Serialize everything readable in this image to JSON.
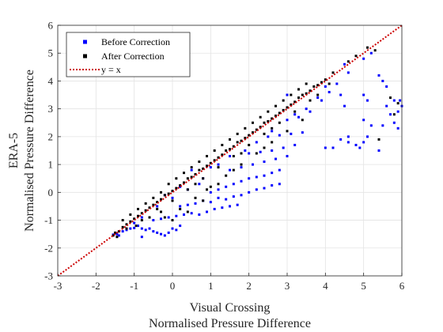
{
  "chart_data": {
    "type": "scatter",
    "title": "",
    "xlabel": [
      "Visual Crossing",
      "Normalised Pressure Difference"
    ],
    "ylabel": [
      "ERA-5",
      "Normalised Pressure Difference"
    ],
    "xlim": [
      -3,
      6
    ],
    "ylim": [
      -3,
      6
    ],
    "xticks": [
      -3,
      -2,
      -1,
      0,
      1,
      2,
      3,
      4,
      5,
      6
    ],
    "yticks": [
      -3,
      -2,
      -1,
      0,
      1,
      2,
      3,
      4,
      5,
      6
    ],
    "grid": true,
    "legend_position": "top-left",
    "series": [
      {
        "name": "Before Correction",
        "color": "#0000ff",
        "marker": "square",
        "points": [
          [
            -1.55,
            -1.52
          ],
          [
            -1.45,
            -1.5
          ],
          [
            -1.4,
            -1.55
          ],
          [
            -1.3,
            -1.4
          ],
          [
            -1.2,
            -1.35
          ],
          [
            -1.1,
            -1.3
          ],
          [
            -1.0,
            -1.28
          ],
          [
            -0.9,
            -1.2
          ],
          [
            -0.8,
            -1.3
          ],
          [
            -0.7,
            -1.35
          ],
          [
            -0.6,
            -1.3
          ],
          [
            -0.5,
            -1.4
          ],
          [
            -0.4,
            -1.45
          ],
          [
            -0.3,
            -1.5
          ],
          [
            -0.2,
            -1.55
          ],
          [
            -0.1,
            -1.45
          ],
          [
            0.0,
            -1.3
          ],
          [
            0.1,
            -1.35
          ],
          [
            0.2,
            -1.2
          ],
          [
            -0.5,
            -1.0
          ],
          [
            -0.3,
            -0.95
          ],
          [
            -0.1,
            -0.9
          ],
          [
            0.1,
            -0.85
          ],
          [
            0.3,
            -0.8
          ],
          [
            0.5,
            -0.75
          ],
          [
            0.7,
            -0.8
          ],
          [
            0.9,
            -0.7
          ],
          [
            1.1,
            -0.6
          ],
          [
            1.3,
            -0.55
          ],
          [
            1.5,
            -0.5
          ],
          [
            1.7,
            -0.45
          ],
          [
            0.2,
            -0.5
          ],
          [
            0.4,
            -0.45
          ],
          [
            0.6,
            -0.4
          ],
          [
            0.8,
            -0.3
          ],
          [
            1.0,
            -0.35
          ],
          [
            1.2,
            -0.2
          ],
          [
            1.4,
            -0.25
          ],
          [
            1.6,
            -0.15
          ],
          [
            1.8,
            -0.1
          ],
          [
            2.0,
            0.0
          ],
          [
            2.2,
            0.1
          ],
          [
            2.4,
            0.15
          ],
          [
            2.6,
            0.25
          ],
          [
            2.8,
            0.3
          ],
          [
            1.0,
            0.0
          ],
          [
            1.2,
            0.1
          ],
          [
            1.4,
            0.2
          ],
          [
            1.6,
            0.3
          ],
          [
            1.8,
            0.4
          ],
          [
            2.0,
            0.5
          ],
          [
            2.2,
            0.55
          ],
          [
            2.4,
            0.6
          ],
          [
            2.6,
            0.7
          ],
          [
            2.8,
            0.8
          ],
          [
            1.5,
            0.8
          ],
          [
            1.8,
            0.9
          ],
          [
            2.1,
            1.0
          ],
          [
            2.4,
            1.1
          ],
          [
            2.7,
            1.2
          ],
          [
            3.0,
            1.3
          ],
          [
            2.0,
            1.4
          ],
          [
            2.3,
            1.45
          ],
          [
            2.6,
            1.5
          ],
          [
            2.9,
            1.6
          ],
          [
            3.2,
            1.7
          ],
          [
            2.5,
            2.0
          ],
          [
            2.8,
            2.05
          ],
          [
            3.1,
            2.1
          ],
          [
            3.4,
            2.15
          ],
          [
            3.0,
            2.6
          ],
          [
            3.3,
            2.7
          ],
          [
            3.6,
            2.9
          ],
          [
            3.9,
            3.3
          ],
          [
            4.1,
            3.6
          ],
          [
            4.3,
            3.9
          ],
          [
            4.6,
            4.3
          ],
          [
            5.0,
            4.8
          ],
          [
            5.2,
            5.0
          ],
          [
            4.5,
            4.6
          ],
          [
            4.4,
            3.5
          ],
          [
            4.5,
            3.1
          ],
          [
            4.6,
            2.0
          ],
          [
            4.8,
            1.7
          ],
          [
            4.9,
            1.6
          ],
          [
            5.0,
            1.8
          ],
          [
            5.1,
            2.0
          ],
          [
            5.2,
            2.4
          ],
          [
            5.0,
            2.6
          ],
          [
            4.6,
            1.8
          ],
          [
            4.4,
            1.9
          ],
          [
            4.2,
            1.6
          ],
          [
            4.0,
            1.6
          ],
          [
            5.4,
            4.2
          ],
          [
            5.5,
            4.0
          ],
          [
            5.6,
            3.8
          ],
          [
            5.8,
            3.3
          ],
          [
            5.9,
            2.9
          ],
          [
            6.0,
            3.1
          ],
          [
            5.4,
            1.5
          ],
          [
            5.5,
            2.4
          ],
          [
            5.6,
            3.1
          ],
          [
            5.7,
            2.8
          ],
          [
            5.8,
            2.5
          ],
          [
            5.9,
            2.3
          ],
          [
            5.95,
            3.3
          ],
          [
            5.1,
            3.3
          ],
          [
            5.0,
            3.5
          ],
          [
            3.0,
            3.5
          ],
          [
            -0.8,
            -1.6
          ],
          [
            0.5,
            0.8
          ],
          [
            1.0,
            0.9
          ],
          [
            0.2,
            0.2
          ],
          [
            -0.2,
            -0.1
          ],
          [
            0.7,
            0.3
          ],
          [
            2.2,
            1.8
          ],
          [
            2.6,
            2.2
          ],
          [
            3.5,
            3.0
          ],
          [
            3.8,
            3.4
          ],
          [
            1.2,
            1.0
          ],
          [
            1.5,
            1.3
          ],
          [
            0.8,
            0.5
          ],
          [
            -0.4,
            -0.5
          ],
          [
            -0.8,
            -0.9
          ],
          [
            -1.0,
            -1.1
          ],
          [
            0.0,
            -0.2
          ],
          [
            0.4,
            0.1
          ],
          [
            1.9,
            1.5
          ],
          [
            3.2,
            2.8
          ],
          [
            4.0,
            3.8
          ]
        ]
      },
      {
        "name": "After Correction",
        "color": "#000000",
        "marker": "square",
        "points": [
          [
            -1.55,
            -1.55
          ],
          [
            -1.5,
            -1.45
          ],
          [
            -1.4,
            -1.4
          ],
          [
            -1.3,
            -1.25
          ],
          [
            -1.2,
            -1.15
          ],
          [
            -1.1,
            -1.05
          ],
          [
            -1.0,
            -0.95
          ],
          [
            -0.9,
            -0.85
          ],
          [
            -0.8,
            -0.75
          ],
          [
            -0.7,
            -0.65
          ],
          [
            -0.6,
            -0.55
          ],
          [
            -0.5,
            -0.45
          ],
          [
            -0.4,
            -0.35
          ],
          [
            -0.3,
            -0.25
          ],
          [
            -0.2,
            -0.1
          ],
          [
            -0.1,
            -0.05
          ],
          [
            0.0,
            0.05
          ],
          [
            0.1,
            0.15
          ],
          [
            0.2,
            0.25
          ],
          [
            0.3,
            0.35
          ],
          [
            0.4,
            0.5
          ],
          [
            0.5,
            0.55
          ],
          [
            0.6,
            0.65
          ],
          [
            0.7,
            0.8
          ],
          [
            0.8,
            0.85
          ],
          [
            0.9,
            0.95
          ],
          [
            1.0,
            1.05
          ],
          [
            1.1,
            1.15
          ],
          [
            1.2,
            1.25
          ],
          [
            1.3,
            1.35
          ],
          [
            1.4,
            1.5
          ],
          [
            1.5,
            1.55
          ],
          [
            1.6,
            1.65
          ],
          [
            1.7,
            1.8
          ],
          [
            1.8,
            1.85
          ],
          [
            1.9,
            1.95
          ],
          [
            2.0,
            2.05
          ],
          [
            2.1,
            2.15
          ],
          [
            2.2,
            2.25
          ],
          [
            2.3,
            2.35
          ],
          [
            2.4,
            2.5
          ],
          [
            2.5,
            2.55
          ],
          [
            2.6,
            2.65
          ],
          [
            2.7,
            2.75
          ],
          [
            2.8,
            2.85
          ],
          [
            2.9,
            2.95
          ],
          [
            3.0,
            3.05
          ],
          [
            3.1,
            3.15
          ],
          [
            3.2,
            3.25
          ],
          [
            3.3,
            3.4
          ],
          [
            3.4,
            3.5
          ],
          [
            3.5,
            3.55
          ],
          [
            3.6,
            3.65
          ],
          [
            3.7,
            3.8
          ],
          [
            3.8,
            3.85
          ],
          [
            3.9,
            3.95
          ],
          [
            4.0,
            4.05
          ],
          [
            -1.3,
            -1.0
          ],
          [
            -1.1,
            -0.8
          ],
          [
            -0.9,
            -0.6
          ],
          [
            -0.7,
            -0.4
          ],
          [
            -0.5,
            -0.2
          ],
          [
            -0.3,
            0.0
          ],
          [
            -0.1,
            0.3
          ],
          [
            0.1,
            0.5
          ],
          [
            0.3,
            0.7
          ],
          [
            0.5,
            0.9
          ],
          [
            0.7,
            1.1
          ],
          [
            0.9,
            1.3
          ],
          [
            1.1,
            1.5
          ],
          [
            1.3,
            1.7
          ],
          [
            1.5,
            1.9
          ],
          [
            1.7,
            2.1
          ],
          [
            1.9,
            2.3
          ],
          [
            2.1,
            2.5
          ],
          [
            2.3,
            2.7
          ],
          [
            2.5,
            2.9
          ],
          [
            2.7,
            3.1
          ],
          [
            2.9,
            3.3
          ],
          [
            3.1,
            3.5
          ],
          [
            3.3,
            3.7
          ],
          [
            3.5,
            3.9
          ],
          [
            -1.2,
            -1.3
          ],
          [
            -0.8,
            -1.0
          ],
          [
            -0.4,
            -0.6
          ],
          [
            0.0,
            -0.3
          ],
          [
            0.4,
            0.1
          ],
          [
            0.8,
            0.5
          ],
          [
            1.2,
            0.9
          ],
          [
            1.6,
            1.3
          ],
          [
            2.0,
            1.7
          ],
          [
            2.4,
            2.1
          ],
          [
            2.8,
            2.5
          ],
          [
            3.2,
            2.9
          ],
          [
            3.6,
            3.3
          ],
          [
            -0.2,
            -0.9
          ],
          [
            0.2,
            -0.6
          ],
          [
            0.6,
            -0.2
          ],
          [
            1.0,
            0.2
          ],
          [
            1.4,
            0.6
          ],
          [
            1.8,
            1.0
          ],
          [
            2.2,
            1.4
          ],
          [
            2.6,
            1.8
          ],
          [
            0.0,
            -1.0
          ],
          [
            0.4,
            -0.7
          ],
          [
            0.8,
            -0.3
          ],
          [
            1.2,
            0.3
          ],
          [
            3.0,
            2.2
          ],
          [
            3.4,
            2.6
          ],
          [
            4.2,
            4.3
          ],
          [
            5.1,
            5.2
          ],
          [
            5.3,
            5.1
          ],
          [
            4.8,
            4.9
          ],
          [
            4.6,
            4.7
          ],
          [
            5.4,
            1.9
          ],
          [
            5.8,
            2.8
          ],
          [
            5.9,
            3.2
          ],
          [
            5.7,
            3.4
          ],
          [
            -1.45,
            -1.6
          ],
          [
            -0.6,
            -0.9
          ],
          [
            0.6,
            0.3
          ],
          [
            1.8,
            1.4
          ],
          [
            2.6,
            2.3
          ],
          [
            3.8,
            3.5
          ],
          [
            4.1,
            3.9
          ],
          [
            -0.95,
            -1.2
          ],
          [
            1.6,
            0.8
          ],
          [
            2.4,
            1.6
          ],
          [
            0.9,
            0.1
          ],
          [
            -0.3,
            -0.7
          ]
        ]
      },
      {
        "name": "y = x",
        "color": "#cc0000",
        "line_style": "dotted",
        "points": [
          [
            -3,
            -3
          ],
          [
            6,
            6
          ]
        ]
      }
    ]
  }
}
